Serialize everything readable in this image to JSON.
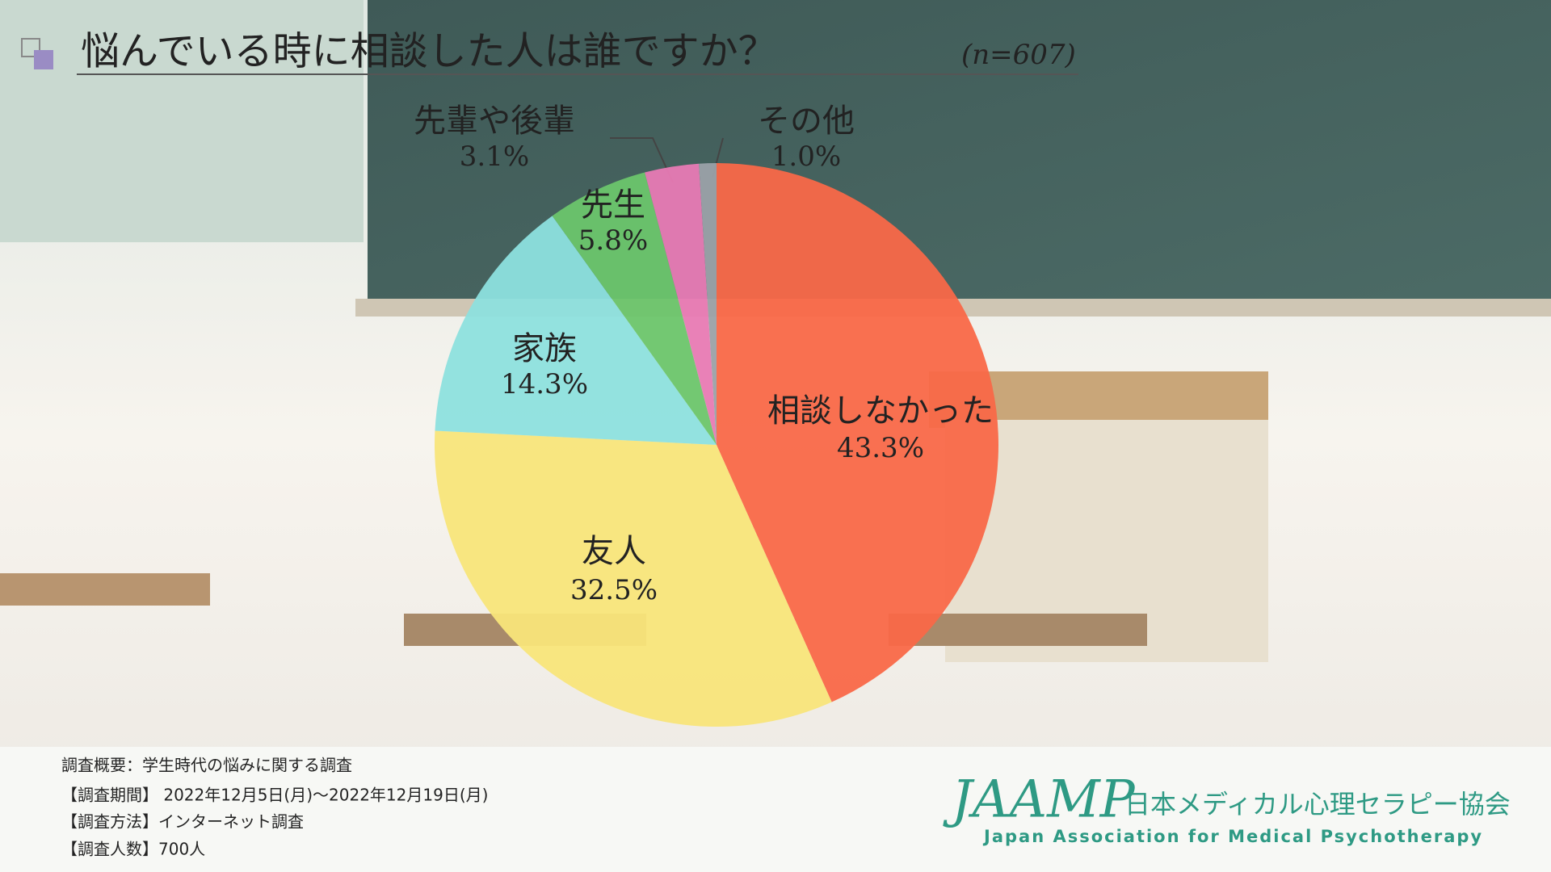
{
  "chart_data": {
    "type": "pie",
    "title": "悩んでいる時に相談した人は誰ですか？",
    "subtitle": "(n=607)",
    "categories": [
      "相談しなかった",
      "友人",
      "家族",
      "先生",
      "先輩や後輩",
      "その他"
    ],
    "values": [
      43.3,
      32.5,
      14.3,
      5.8,
      3.1,
      1.0
    ],
    "value_labels": [
      "43.3%",
      "32.5%",
      "14.3%",
      "5.8%",
      "3.1%",
      "1.0%"
    ],
    "colors": [
      "#f96848",
      "#f8e57a",
      "#8de0de",
      "#6cc56c",
      "#e87ab4",
      "#9ba1a8"
    ]
  },
  "footer": {
    "lines": [
      "調査概要：学生時代の悩みに関する調査",
      "【調査期間】 2022年12月5日(月)～2022年12月19日(月)",
      "【調査方法】インターネット調査",
      "【調査人数】700人"
    ]
  },
  "logo": {
    "mark": "JAAMP",
    "name": "日本メディカル心理セラピー協会",
    "english": "Japan Association for Medical Psychotherapy"
  }
}
